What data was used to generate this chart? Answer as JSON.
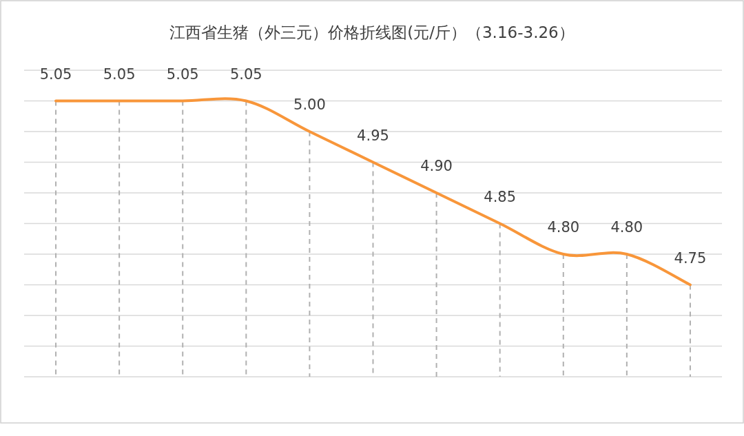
{
  "chart_data": {
    "type": "line",
    "title": "江西省生猪（外三元）价格折线图(元/斤）（3.16-3.26）",
    "categories": [
      null,
      null,
      null,
      null,
      null,
      null,
      null,
      null,
      null,
      null,
      null
    ],
    "series": [
      {
        "color": "#f8963a",
        "values": [
          5.05,
          5.05,
          5.05,
          5.05,
          5.0,
          4.95,
          4.9,
          4.85,
          4.8,
          4.8,
          4.75
        ],
        "value_labels": [
          "5.05",
          "5.05",
          "5.05",
          "5.05",
          "5.00",
          "4.95",
          "4.90",
          "4.85",
          "4.80",
          "4.80",
          "4.75"
        ]
      }
    ],
    "ylim": [
      4.6,
      5.1
    ],
    "yticks": [
      {
        "value": 4.6,
        "label": null
      },
      {
        "value": 4.65,
        "label": null
      },
      {
        "value": 4.7,
        "label": null
      },
      {
        "value": 4.75,
        "label": null
      },
      {
        "value": 4.8,
        "label": null
      },
      {
        "value": 4.85,
        "label": null
      },
      {
        "value": 4.9,
        "label": null
      },
      {
        "value": 4.95,
        "label": null
      },
      {
        "value": 5.0,
        "label": null
      },
      {
        "value": 5.05,
        "label": null
      },
      {
        "value": 5.1,
        "label": null
      }
    ],
    "grid": true,
    "marker": "none",
    "line_style": "solid"
  }
}
